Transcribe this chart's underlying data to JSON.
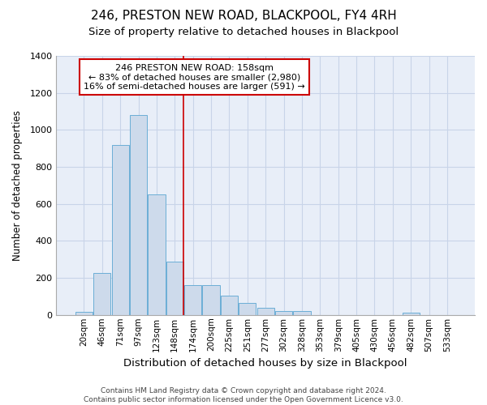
{
  "title": "246, PRESTON NEW ROAD, BLACKPOOL, FY4 4RH",
  "subtitle": "Size of property relative to detached houses in Blackpool",
  "xlabel": "Distribution of detached houses by size in Blackpool",
  "ylabel": "Number of detached properties",
  "footer_line1": "Contains HM Land Registry data © Crown copyright and database right 2024.",
  "footer_line2": "Contains public sector information licensed under the Open Government Licence v3.0.",
  "bar_labels": [
    "20sqm",
    "46sqm",
    "71sqm",
    "97sqm",
    "123sqm",
    "148sqm",
    "174sqm",
    "200sqm",
    "225sqm",
    "251sqm",
    "277sqm",
    "302sqm",
    "328sqm",
    "353sqm",
    "379sqm",
    "405sqm",
    "430sqm",
    "456sqm",
    "482sqm",
    "507sqm",
    "533sqm"
  ],
  "bar_values": [
    15,
    225,
    920,
    1080,
    650,
    290,
    160,
    160,
    105,
    65,
    40,
    22,
    20,
    0,
    0,
    0,
    0,
    0,
    12,
    0,
    0
  ],
  "bar_color": "#cddaeb",
  "bar_edgecolor": "#6baed6",
  "grid_color": "#c8d4e8",
  "background_color": "#e8eef8",
  "vline_color": "#cc0000",
  "vline_pos": 5.5,
  "annotation_text": "246 PRESTON NEW ROAD: 158sqm\n← 83% of detached houses are smaller (2,980)\n16% of semi-detached houses are larger (591) →",
  "annotation_box_facecolor": "white",
  "annotation_box_edgecolor": "#cc0000",
  "ylim": [
    0,
    1400
  ],
  "yticks": [
    0,
    200,
    400,
    600,
    800,
    1000,
    1200,
    1400
  ],
  "title_fontsize": 11,
  "subtitle_fontsize": 9.5,
  "ylabel_fontsize": 8.5,
  "xlabel_fontsize": 9.5,
  "tick_fontsize": 8,
  "xtick_fontsize": 7.5,
  "annotation_fontsize": 8,
  "footer_fontsize": 6.5
}
